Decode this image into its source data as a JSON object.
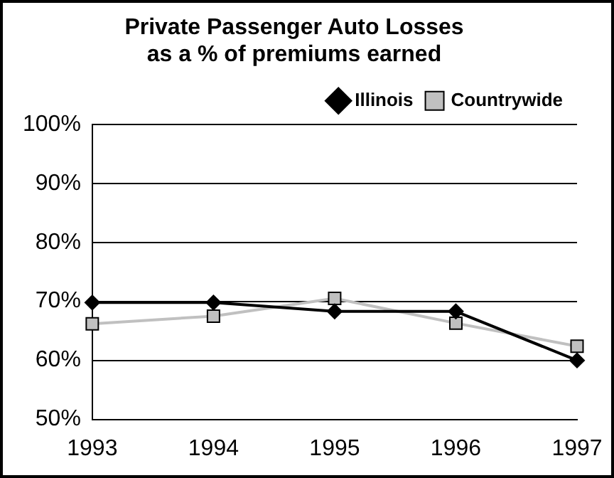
{
  "chart_data": {
    "type": "line",
    "title": "Private Passenger Auto Losses\nas a % of premiums earned",
    "categories": [
      "1993",
      "1994",
      "1995",
      "1996",
      "1997"
    ],
    "series": [
      {
        "name": "Illinois",
        "color": "#000000",
        "marker": "diamond",
        "values": [
          69.8,
          69.8,
          68.3,
          68.3,
          60.0
        ]
      },
      {
        "name": "Countrywide",
        "color": "#c0c0c0",
        "marker": "square",
        "values": [
          66.2,
          67.5,
          70.5,
          66.3,
          62.4
        ]
      }
    ],
    "ylim": [
      50,
      100
    ],
    "yticks": [
      {
        "value": 50,
        "label": "50%"
      },
      {
        "value": 60,
        "label": "60%"
      },
      {
        "value": 70,
        "label": "70%"
      },
      {
        "value": 80,
        "label": "80%"
      },
      {
        "value": 90,
        "label": "90%"
      },
      {
        "value": 100,
        "label": "100%"
      }
    ],
    "grid": "y",
    "legend": "top right",
    "line_style": "solid"
  }
}
